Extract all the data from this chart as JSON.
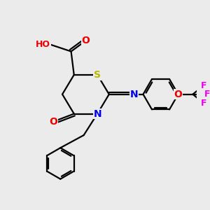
{
  "bg_color": "#ebebeb",
  "bond_color": "#000000",
  "bond_width": 1.6,
  "atom_colors": {
    "S": "#b8b800",
    "N": "#0000ee",
    "O": "#ee0000",
    "F": "#ee00ee",
    "C": "#000000",
    "H": "#707070"
  },
  "font_size": 9,
  "xlim": [
    0,
    10
  ],
  "ylim": [
    0,
    10
  ]
}
